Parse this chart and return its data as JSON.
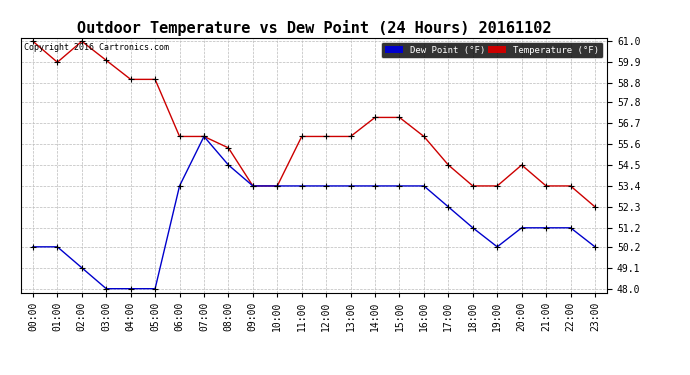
{
  "title": "Outdoor Temperature vs Dew Point (24 Hours) 20161102",
  "copyright_text": "Copyright 2016 Cartronics.com",
  "legend_dew": "Dew Point (°F)",
  "legend_temp": "Temperature (°F)",
  "x_labels": [
    "00:00",
    "01:00",
    "02:00",
    "03:00",
    "04:00",
    "05:00",
    "06:00",
    "07:00",
    "08:00",
    "09:00",
    "10:00",
    "11:00",
    "12:00",
    "13:00",
    "14:00",
    "15:00",
    "16:00",
    "17:00",
    "18:00",
    "19:00",
    "20:00",
    "21:00",
    "22:00",
    "23:00"
  ],
  "temperature": [
    61.0,
    59.9,
    61.0,
    60.0,
    59.0,
    59.0,
    56.0,
    56.0,
    55.4,
    53.4,
    53.4,
    56.0,
    56.0,
    56.0,
    57.0,
    57.0,
    56.0,
    54.5,
    53.4,
    53.4,
    54.5,
    53.4,
    53.4,
    52.3
  ],
  "dew_point": [
    50.2,
    50.2,
    49.1,
    48.0,
    48.0,
    48.0,
    53.4,
    56.0,
    54.5,
    53.4,
    53.4,
    53.4,
    53.4,
    53.4,
    53.4,
    53.4,
    53.4,
    52.3,
    51.2,
    50.2,
    51.2,
    51.2,
    51.2,
    50.2
  ],
  "temp_color": "#cc0000",
  "dew_color": "#0000cc",
  "ylim_min": 48.0,
  "ylim_max": 61.0,
  "yticks": [
    48.0,
    49.1,
    50.2,
    51.2,
    52.3,
    53.4,
    54.5,
    55.6,
    56.7,
    57.8,
    58.8,
    59.9,
    61.0
  ],
  "bg_color": "#ffffff",
  "grid_color": "#bbbbbb",
  "title_fontsize": 11,
  "axis_fontsize": 7
}
